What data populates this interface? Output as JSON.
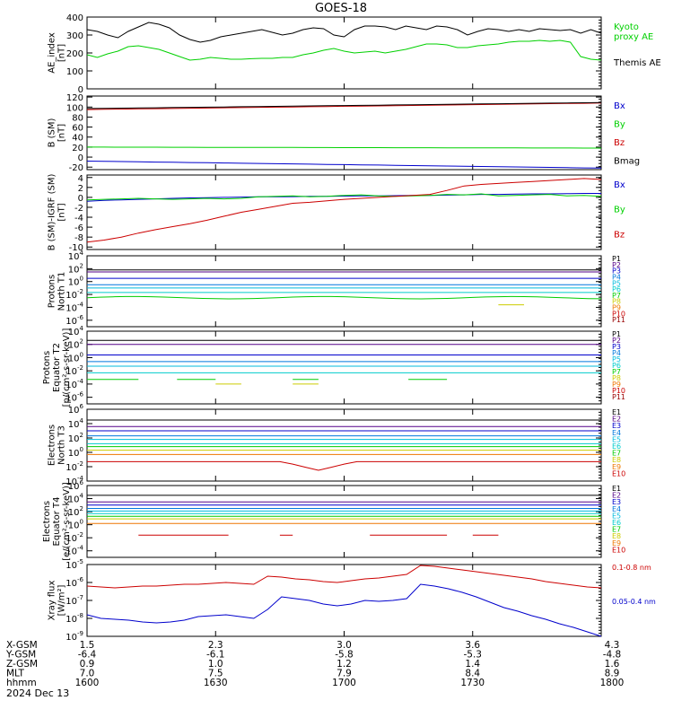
{
  "title": "GOES-18",
  "colors": {
    "black": "#000000",
    "green": "#00d000",
    "red": "#cc0000",
    "blue": "#0000cc",
    "p1": "#000000",
    "p2": "#550088",
    "p3": "#0000cc",
    "p4": "#0077dd",
    "p5": "#00bbdd",
    "p6": "#00cccc",
    "p7": "#00cc00",
    "p8": "#cccc00",
    "p9": "#ee7700",
    "p10": "#cc0000",
    "p11": "#990000"
  },
  "bottom_axis": {
    "rows": [
      {
        "label": "X-GSM",
        "values": [
          "1.5",
          "2.3",
          "3.0",
          "3.6",
          "4.3"
        ]
      },
      {
        "label": "Y-GSM",
        "values": [
          "-6.4",
          "-6.1",
          "-5.8",
          "-5.3",
          "-4.8"
        ]
      },
      {
        "label": "Z-GSM",
        "values": [
          "0.9",
          "1.0",
          "1.2",
          "1.4",
          "1.6"
        ]
      },
      {
        "label": "MLT",
        "values": [
          "7.0",
          "7.5",
          "7.9",
          "8.4",
          "8.9"
        ]
      },
      {
        "label": "hhmm",
        "values": [
          "1600",
          "1630",
          "1700",
          "1730",
          "1800"
        ]
      }
    ],
    "date": "2024 Dec 13"
  },
  "chart_data": [
    {
      "type": "line",
      "ylabel": "AE_index\n[nT]",
      "ylim": [
        0,
        400
      ],
      "yticks": [
        "0",
        "100",
        "200",
        "300",
        "400"
      ],
      "series": [
        {
          "name": "Kyoto\nproxy AE",
          "color": "green",
          "values": [
            190,
            175,
            195,
            210,
            235,
            240,
            230,
            220,
            200,
            180,
            160,
            165,
            175,
            170,
            165,
            165,
            168,
            170,
            170,
            175,
            175,
            190,
            200,
            215,
            225,
            210,
            200,
            205,
            210,
            200,
            210,
            220,
            235,
            250,
            250,
            245,
            230,
            230,
            240,
            245,
            250,
            260,
            265,
            265,
            270,
            265,
            270,
            260,
            180,
            165,
            160
          ]
        },
        {
          "name": "Themis AE",
          "color": "black",
          "values": [
            330,
            320,
            300,
            285,
            320,
            345,
            370,
            360,
            340,
            300,
            275,
            260,
            270,
            290,
            300,
            310,
            320,
            330,
            315,
            300,
            310,
            330,
            340,
            335,
            300,
            290,
            330,
            350,
            350,
            345,
            330,
            350,
            340,
            330,
            350,
            345,
            330,
            300,
            320,
            335,
            330,
            320,
            330,
            320,
            335,
            330,
            325,
            330,
            310,
            330,
            310
          ]
        }
      ],
      "legend_order": [
        0,
        1
      ]
    },
    {
      "type": "line",
      "ylabel": "B (SM)\n[nT]",
      "ylim": [
        -25,
        122
      ],
      "yticks": [
        "-20",
        "0",
        "20",
        "40",
        "60",
        "80",
        "100",
        "120"
      ],
      "series": [
        {
          "name": "Bx",
          "color": "blue",
          "start": -8,
          "end": -22
        },
        {
          "name": "By",
          "color": "green",
          "start": 20,
          "end": 18
        },
        {
          "name": "Bz",
          "color": "red",
          "start": 95,
          "end": 108
        },
        {
          "name": "Bmag",
          "color": "black",
          "start": 97,
          "end": 109
        }
      ]
    },
    {
      "type": "line",
      "ylabel": "B (SM)-IGRF (SM)\n[nT]",
      "ylim": [
        -10.5,
        4.5
      ],
      "yticks": [
        "-10",
        "-8",
        "-6",
        "-4",
        "-2",
        "0",
        "2",
        "4"
      ],
      "series": [
        {
          "name": "Bx",
          "color": "blue",
          "values": [
            -0.8,
            -0.6,
            -0.5,
            -0.4,
            -0.3,
            -0.2,
            -0.1,
            -0.05,
            0,
            0.05,
            0.1,
            0.1,
            0.15,
            0.2,
            0.2,
            0.25,
            0.3,
            0.3,
            0.35,
            0.4,
            0.4,
            0.45,
            0.5,
            0.6,
            0.6,
            0.65,
            0.7,
            0.7,
            0.75,
            0.8,
            0.8
          ]
        },
        {
          "name": "By",
          "color": "green",
          "values": [
            -0.5,
            -0.4,
            -0.3,
            -0.2,
            -0.3,
            -0.4,
            -0.3,
            -0.2,
            -0.3,
            -0.2,
            0.1,
            0.2,
            0.3,
            0.1,
            0.2,
            0.4,
            0.5,
            0.3,
            0.2,
            0.3,
            0.4,
            0.6,
            0.5,
            0.7,
            0.3,
            0.4,
            0.5,
            0.6,
            0.3,
            0.4,
            0.2
          ]
        },
        {
          "name": "Bz",
          "color": "red",
          "values": [
            -9,
            -8.6,
            -8,
            -7.2,
            -6.5,
            -5.9,
            -5.3,
            -4.6,
            -3.8,
            -3,
            -2.4,
            -1.8,
            -1.2,
            -1,
            -0.7,
            -0.4,
            -0.2,
            0,
            0.2,
            0.4,
            0.6,
            1.4,
            2.3,
            2.6,
            2.8,
            3,
            3.2,
            3.4,
            3.6,
            3.8,
            3.6
          ]
        }
      ]
    },
    {
      "type": "line",
      "log": true,
      "ylabel": "Protons\nNorth T1",
      "ylim_exp": [
        -7,
        4
      ],
      "ytick_exps": [
        4,
        2,
        0,
        -2,
        -4,
        -6
      ],
      "series": [
        {
          "name": "P1",
          "color": "p1",
          "level": 1.8
        },
        {
          "name": "P2",
          "color": "p2",
          "level": 1.5
        },
        {
          "name": "P3",
          "color": "p3",
          "level": 0.5
        },
        {
          "name": "P4",
          "color": "p4",
          "level": -0.5
        },
        {
          "name": "P5",
          "color": "p5",
          "level": -1.0
        },
        {
          "name": "P6",
          "color": "p6",
          "level": -1.7
        },
        {
          "name": "P7",
          "color": "p7",
          "level": -2.5,
          "wiggle": 0.3
        },
        {
          "name": "P8",
          "color": "p8",
          "level": -3.6,
          "segments": [
            [
              0.8,
              0.85
            ]
          ]
        },
        {
          "name": "P9",
          "color": "p9"
        },
        {
          "name": "P10",
          "color": "p10"
        },
        {
          "name": "P11",
          "color": "p11"
        }
      ]
    },
    {
      "type": "line",
      "log": true,
      "ylabel": "Protons\nEquator T2\n[p/(cm²-s-sr-keV)]",
      "ylim_exp": [
        -7,
        4
      ],
      "ytick_exps": [
        4,
        2,
        0,
        -2,
        -4,
        -6
      ],
      "series": [
        {
          "name": "P1",
          "color": "p1",
          "level": 2.6
        },
        {
          "name": "P2",
          "color": "p2",
          "level": 2.0
        },
        {
          "name": "P3",
          "color": "p3",
          "level": 0.4
        },
        {
          "name": "P4",
          "color": "p4",
          "level": -0.6
        },
        {
          "name": "P5",
          "color": "p5",
          "level": -1.3
        },
        {
          "name": "P6",
          "color": "p6",
          "level": -2.3
        },
        {
          "name": "P7",
          "color": "p7",
          "level": -3.3,
          "segments": [
            [
              0.0,
              0.1
            ],
            [
              0.17,
              0.27
            ],
            [
              0.38,
              0.45
            ],
            [
              0.62,
              0.72
            ]
          ]
        },
        {
          "name": "P8",
          "color": "p8",
          "level": -4.0,
          "segments": [
            [
              0.25,
              0.3
            ],
            [
              0.4,
              0.45
            ]
          ]
        },
        {
          "name": "P9",
          "color": "p9"
        },
        {
          "name": "P10",
          "color": "p10"
        },
        {
          "name": "P11",
          "color": "p11"
        }
      ]
    },
    {
      "type": "line",
      "log": true,
      "ylabel": "Electrons\nNorth T3",
      "ylim_exp": [
        -4,
        6
      ],
      "ytick_exps": [
        6,
        4,
        2,
        0,
        -2,
        -4
      ],
      "series": [
        {
          "name": "E1",
          "color": "p1",
          "level": 4.5
        },
        {
          "name": "E2",
          "color": "p2",
          "level": 3.6
        },
        {
          "name": "E3",
          "color": "p3",
          "level": 3.0
        },
        {
          "name": "E4",
          "color": "p4",
          "level": 2.3
        },
        {
          "name": "E5",
          "color": "p5",
          "level": 1.8
        },
        {
          "name": "E6",
          "color": "p6",
          "level": 1.2
        },
        {
          "name": "E7",
          "color": "p7",
          "level": 0.8
        },
        {
          "name": "E8",
          "color": "p8",
          "level": 0.3
        },
        {
          "name": "E9",
          "color": "p9",
          "level": -0.3
        },
        {
          "name": "E10",
          "color": "p10",
          "level": -1.3,
          "dip": [
            0.45,
            -2.5
          ]
        }
      ]
    },
    {
      "type": "line",
      "log": true,
      "ylabel": "Electrons\nEquator T4\n[e/(cm²-s-sr-keV)]",
      "ylim_exp": [
        -5,
        6
      ],
      "ytick_exps": [
        6,
        4,
        2,
        0,
        -2,
        -4
      ],
      "series": [
        {
          "name": "E1",
          "color": "p1",
          "level": 4.5
        },
        {
          "name": "E2",
          "color": "p2",
          "level": 3.5
        },
        {
          "name": "E3",
          "color": "p3",
          "level": 3.0
        },
        {
          "name": "E4",
          "color": "p4",
          "level": 2.5
        },
        {
          "name": "E5",
          "color": "p5",
          "level": 2.1
        },
        {
          "name": "E6",
          "color": "p6",
          "level": 1.7
        },
        {
          "name": "E7",
          "color": "p7",
          "level": 1.3
        },
        {
          "name": "E8",
          "color": "p8",
          "level": 0.9
        },
        {
          "name": "E9",
          "color": "p9",
          "level": 0.2
        },
        {
          "name": "E10",
          "color": "p10",
          "level": -1.6,
          "segments": [
            [
              0.09,
              0.28
            ],
            [
              0.37,
              0.42
            ],
            [
              0.55,
              0.7
            ],
            [
              0.74,
              0.81
            ]
          ]
        }
      ]
    },
    {
      "type": "line",
      "log": true,
      "ylabel": "Xray flux\n[W/m²]",
      "ylim_exp": [
        -9,
        -5
      ],
      "ytick_exps": [
        -5,
        -6,
        -7,
        -8,
        -9
      ],
      "series": [
        {
          "name": "0.1-0.8 nm",
          "color": "red",
          "values": [
            -6.2,
            -6.25,
            -6.3,
            -6.25,
            -6.2,
            -6.2,
            -6.15,
            -6.1,
            -6.1,
            -6.05,
            -6.0,
            -6.05,
            -6.1,
            -5.65,
            -5.7,
            -5.8,
            -5.85,
            -5.95,
            -6.0,
            -5.9,
            -5.8,
            -5.75,
            -5.65,
            -5.55,
            -5.05,
            -5.1,
            -5.2,
            -5.3,
            -5.4,
            -5.5,
            -5.6,
            -5.7,
            -5.8,
            -5.95,
            -6.05,
            -6.15,
            -6.25,
            -6.3
          ]
        },
        {
          "name": "0.05-0.4 nm",
          "color": "blue",
          "values": [
            -7.8,
            -8.0,
            -8.05,
            -8.1,
            -8.2,
            -8.25,
            -8.2,
            -8.1,
            -7.9,
            -7.85,
            -7.8,
            -7.9,
            -8.0,
            -7.5,
            -6.8,
            -6.9,
            -7.0,
            -7.2,
            -7.3,
            -7.2,
            -7.0,
            -7.05,
            -7.0,
            -6.9,
            -6.1,
            -6.2,
            -6.35,
            -6.55,
            -6.8,
            -7.1,
            -7.4,
            -7.6,
            -7.85,
            -8.05,
            -8.3,
            -8.5,
            -8.75,
            -9.0
          ]
        }
      ]
    }
  ]
}
